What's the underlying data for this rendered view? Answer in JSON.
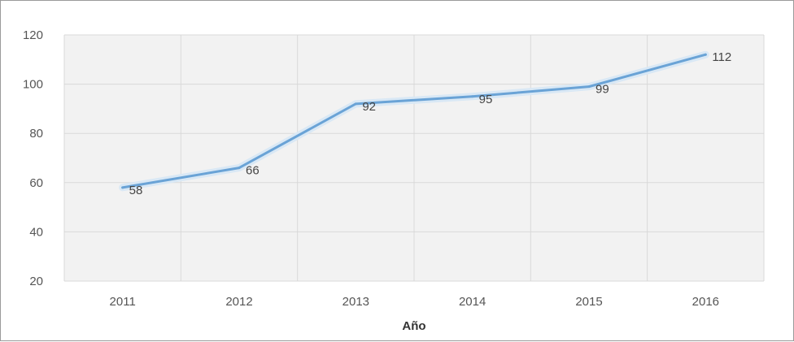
{
  "chart_data": {
    "type": "line",
    "categories": [
      "2011",
      "2012",
      "2013",
      "2014",
      "2015",
      "2016"
    ],
    "values": [
      58,
      66,
      92,
      95,
      99,
      112
    ],
    "data_labels": [
      "58",
      "66",
      "92",
      "95",
      "99",
      "112"
    ],
    "y_ticks": [
      "20",
      "40",
      "60",
      "80",
      "100",
      "120"
    ],
    "xlabel": "Año",
    "ylabel": "",
    "ylim": [
      20,
      120
    ],
    "grid": true,
    "colors": {
      "line": "#6aa3d6",
      "line_halo": "#d9e8f5",
      "plot_background": "#f2f2f2",
      "grid": "#d9d9d9"
    }
  }
}
